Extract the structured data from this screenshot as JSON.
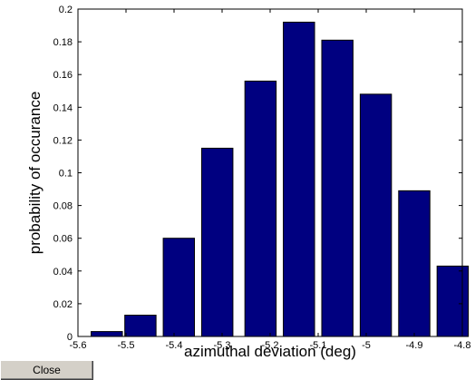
{
  "chart_data": {
    "type": "bar",
    "categories": [
      -5.5,
      -5.45,
      -5.4,
      -5.3,
      -5.2,
      -5.15,
      -5.1,
      -5.0,
      -4.9,
      -4.85
    ],
    "x": [
      -5.54,
      -5.47,
      -5.39,
      -5.31,
      -5.22,
      -5.14,
      -5.06,
      -4.98,
      -4.9,
      -4.82
    ],
    "values": [
      0.003,
      0.013,
      0.06,
      0.115,
      0.156,
      0.192,
      0.181,
      0.148,
      0.089,
      0.043
    ],
    "xlim": [
      -5.6,
      -4.8
    ],
    "ylim": [
      0,
      0.2
    ],
    "xticks": [
      "-5.6",
      "-5.5",
      "-5.4",
      "-5.3",
      "-5.2",
      "-5.1",
      "-5",
      "-4.9",
      "-4.8"
    ],
    "xtick_values": [
      -5.6,
      -5.5,
      -5.4,
      -5.3,
      -5.2,
      -5.1,
      -5.0,
      -4.9,
      -4.8
    ],
    "yticks": [
      "0",
      "0.02",
      "0.04",
      "0.06",
      "0.08",
      "0.1",
      "0.12",
      "0.14",
      "0.16",
      "0.18",
      "0.2"
    ],
    "ytick_values": [
      0,
      0.02,
      0.04,
      0.06,
      0.08,
      0.1,
      0.12,
      0.14,
      0.16,
      0.18,
      0.2
    ],
    "xlabel": "azimuthal deviation (deg)",
    "ylabel": "probability of occurance",
    "bar_width": 0.065,
    "bar_color": "#000080",
    "grid": false
  },
  "controls": {
    "close_label": "Close"
  }
}
